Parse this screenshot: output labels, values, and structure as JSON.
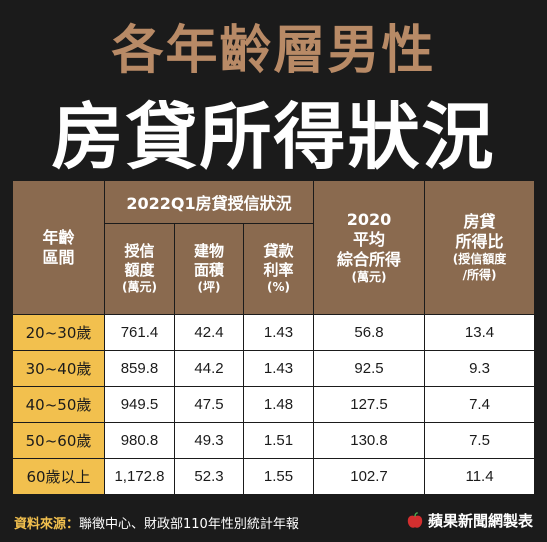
{
  "title": {
    "line1": "各年齡層男性",
    "line2": "房貸所得狀況"
  },
  "table": {
    "col_age": [
      "年齡",
      "區間"
    ],
    "group_header": "2022Q1房貸授信狀況",
    "col_loan": [
      "授信",
      "額度",
      "(萬元)"
    ],
    "col_area": [
      "建物",
      "面積",
      "(坪)"
    ],
    "col_rate": [
      "貸款",
      "利率",
      "(%)"
    ],
    "col_income": [
      "2020",
      "平均",
      "綜合所得",
      "(萬元)"
    ],
    "col_ratio": [
      "房貸",
      "所得比",
      "(授信額度",
      "/所得)"
    ],
    "rows": [
      {
        "age": "20~30歲",
        "loan": "761.4",
        "area": "42.4",
        "rate": "1.43",
        "income": "56.8",
        "ratio": "13.4"
      },
      {
        "age": "30~40歲",
        "loan": "859.8",
        "area": "44.2",
        "rate": "1.43",
        "income": "92.5",
        "ratio": "9.3"
      },
      {
        "age": "40~50歲",
        "loan": "949.5",
        "area": "47.5",
        "rate": "1.48",
        "income": "127.5",
        "ratio": "7.4"
      },
      {
        "age": "50~60歲",
        "loan": "980.8",
        "area": "49.3",
        "rate": "1.51",
        "income": "130.8",
        "ratio": "7.5"
      },
      {
        "age": "60歲以上",
        "loan": "1,172.8",
        "area": "52.3",
        "rate": "1.55",
        "income": "102.7",
        "ratio": "11.4"
      }
    ]
  },
  "footer": {
    "source_label": "資料來源：",
    "source_text": "聯徵中心、財政部110年性別統計年報",
    "brand": "蘋果新聞網製表",
    "brand_icon": "apple-logo-icon"
  },
  "colors": {
    "background": "#1b1b1b",
    "header": "#8a6a4f",
    "age_column": "#f2c04e",
    "title_line1": "#b88a66"
  }
}
